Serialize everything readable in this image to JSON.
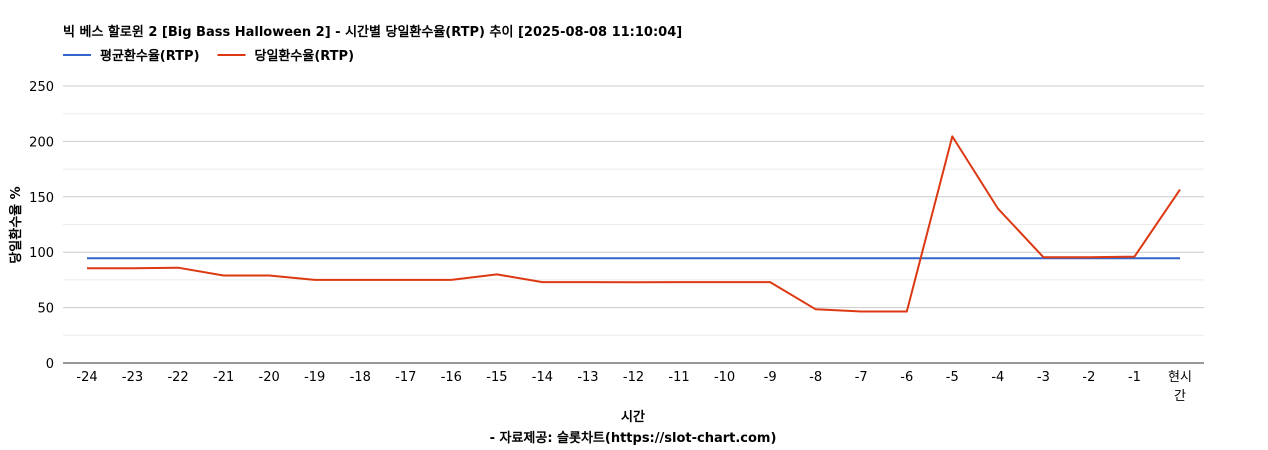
{
  "chart_data": {
    "type": "line",
    "title": "빅 베스 할로윈 2 [Big Bass Halloween 2] - 시간별 당일환수율(RTP) 추이 [2025-08-08 11:10:04]",
    "xlabel": "시간",
    "source": "- 자료제공: 슬롯차트(https://slot-chart.com)",
    "ylabel": "당일환수율 %",
    "ylim": [
      0,
      250
    ],
    "yticks": [
      "0",
      "50",
      "100",
      "150",
      "200",
      "250"
    ],
    "grid": true,
    "legend_position": "top-left",
    "categories": [
      "-24",
      "-23",
      "-22",
      "-21",
      "-20",
      "-19",
      "-18",
      "-17",
      "-16",
      "-15",
      "-14",
      "-13",
      "-12",
      "-11",
      "-10",
      "-9",
      "-8",
      "-7",
      "-6",
      "-5",
      "-4",
      "-3",
      "-2",
      "-1",
      "현시간"
    ],
    "series": [
      {
        "name": "평균환수율(RTP)",
        "color": "#3366cc",
        "values": [
          94.5,
          94.5,
          94.5,
          94.5,
          94.5,
          94.5,
          94.5,
          94.5,
          94.5,
          94.5,
          94.5,
          94.5,
          94.5,
          94.5,
          94.5,
          94.5,
          94.5,
          94.5,
          94.5,
          94.5,
          94.5,
          94.5,
          94.5,
          94.5,
          94.5
        ]
      },
      {
        "name": "당일환수율(RTP)",
        "color": "#dc3912",
        "values": [
          85.5,
          85.5,
          86,
          79,
          79,
          75,
          75,
          75,
          75,
          80,
          73,
          73,
          72.8,
          73,
          73,
          73,
          48.5,
          46.5,
          46.5,
          204.5,
          139.5,
          95.5,
          95.5,
          96,
          156.5
        ]
      }
    ]
  }
}
